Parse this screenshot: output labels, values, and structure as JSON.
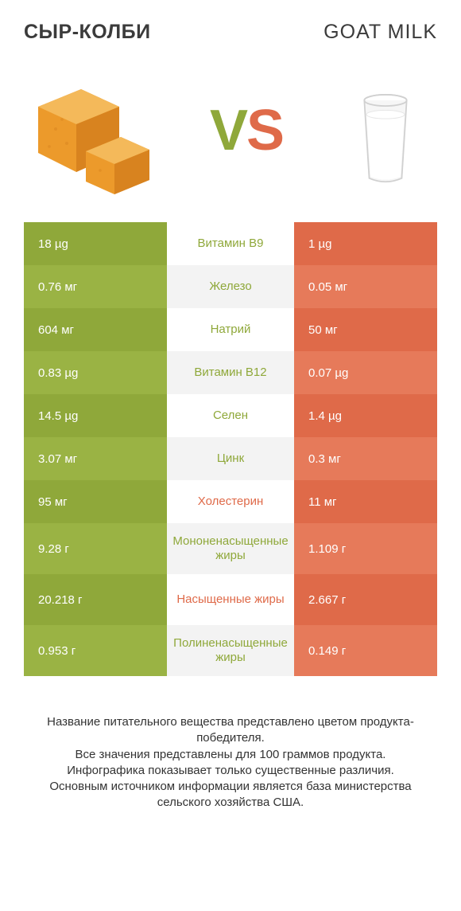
{
  "left_title": "СЫР-КОЛБИ",
  "right_title": "GOAT MILK",
  "vs": {
    "v": "V",
    "s": "S"
  },
  "colors": {
    "left_bar": "#8fa83a",
    "left_bar_alt": "#9ab344",
    "right_bar": "#df6a49",
    "right_bar_alt": "#e67a5a",
    "mid_bg": "#ffffff",
    "mid_bg_alt": "#f3f3f3",
    "mid_text_left": "#8fa83a",
    "mid_text_right": "#df6a49",
    "vs_v": "#8fa83a",
    "vs_s": "#df6a49",
    "cheese_main": "#ec9a2b",
    "cheese_side": "#d8831f",
    "cheese_top": "#f4b95a",
    "milk_fill": "#f2f2f2",
    "milk_stroke": "#d0d0d0",
    "text_dark": "#3b3b3b",
    "footnote": "#333333"
  },
  "rows": [
    {
      "left": "18 µg",
      "mid": "Витамин B9",
      "right": "1 µg",
      "winner": "left",
      "tall": false
    },
    {
      "left": "0.76 мг",
      "mid": "Железо",
      "right": "0.05 мг",
      "winner": "left",
      "tall": false
    },
    {
      "left": "604 мг",
      "mid": "Натрий",
      "right": "50 мг",
      "winner": "left",
      "tall": false
    },
    {
      "left": "0.83 µg",
      "mid": "Витамин B12",
      "right": "0.07 µg",
      "winner": "left",
      "tall": false
    },
    {
      "left": "14.5 µg",
      "mid": "Селен",
      "right": "1.4 µg",
      "winner": "left",
      "tall": false
    },
    {
      "left": "3.07 мг",
      "mid": "Цинк",
      "right": "0.3 мг",
      "winner": "left",
      "tall": false
    },
    {
      "left": "95 мг",
      "mid": "Холестерин",
      "right": "11 мг",
      "winner": "right",
      "tall": false
    },
    {
      "left": "9.28 г",
      "mid": "Мононенасыщенные жиры",
      "right": "1.109 г",
      "winner": "left",
      "tall": true
    },
    {
      "left": "20.218 г",
      "mid": "Насыщенные жиры",
      "right": "2.667 г",
      "winner": "right",
      "tall": true
    },
    {
      "left": "0.953 г",
      "mid": "Полиненасыщенные жиры",
      "right": "0.149 г",
      "winner": "left",
      "tall": true
    }
  ],
  "footnotes": [
    "Название питательного вещества представлено цветом продукта-победителя.",
    "Все значения представлены для 100 граммов продукта.",
    "Инфографика показывает только существенные различия.",
    "Основным источником информации является база министерства сельского хозяйства США."
  ]
}
